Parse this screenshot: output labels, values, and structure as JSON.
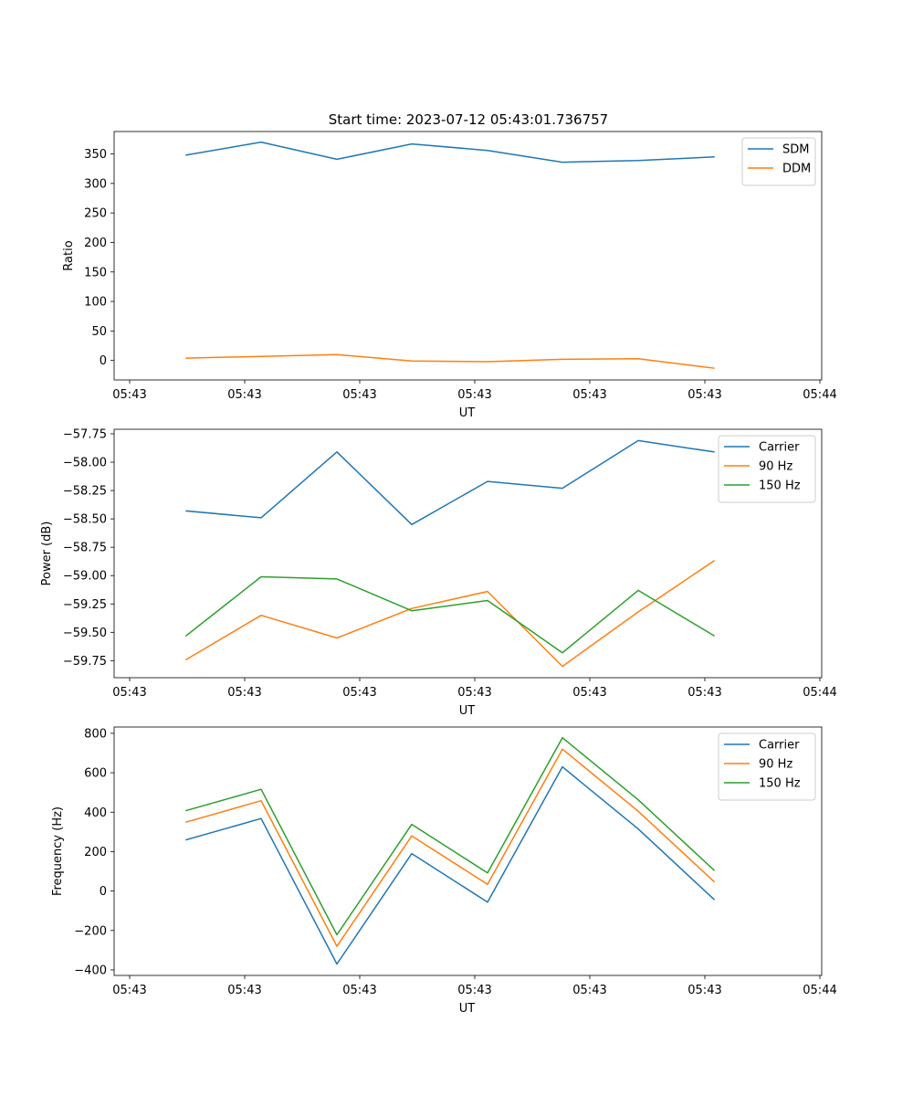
{
  "chart_data": [
    {
      "type": "line",
      "title": "Start time: 2023-07-12 05:43:01.736757",
      "xlabel": "UT",
      "ylabel": "Ratio",
      "x_tick_labels": [
        "05:43",
        "05:43",
        "05:43",
        "05:43",
        "05:43",
        "05:43",
        "05:44"
      ],
      "ylim": [
        -33,
        388
      ],
      "y_ticks": [
        0,
        50,
        100,
        150,
        200,
        250,
        300,
        350
      ],
      "legend": "top-right",
      "series": [
        {
          "name": "SDM",
          "color": "#1f77b4",
          "values": [
            348,
            370,
            341,
            367,
            356,
            336,
            339,
            345
          ]
        },
        {
          "name": "DDM",
          "color": "#ff7f0e",
          "values": [
            4,
            7,
            10,
            -1,
            -2,
            2,
            3,
            -13
          ]
        }
      ]
    },
    {
      "type": "line",
      "title": "",
      "xlabel": "UT",
      "ylabel": "Power (dB)",
      "x_tick_labels": [
        "05:43",
        "05:43",
        "05:43",
        "05:43",
        "05:43",
        "05:43",
        "05:44"
      ],
      "ylim": [
        -59.9,
        -57.71
      ],
      "y_ticks": [
        -59.75,
        -59.5,
        -59.25,
        -59.0,
        -58.75,
        -58.5,
        -58.25,
        -58.0,
        -57.75
      ],
      "legend": "top-right",
      "series": [
        {
          "name": "Carrier",
          "color": "#1f77b4",
          "values": [
            -58.43,
            -58.49,
            -57.91,
            -58.55,
            -58.17,
            -58.23,
            -57.81,
            -57.91
          ]
        },
        {
          "name": "90 Hz",
          "color": "#ff7f0e",
          "values": [
            -59.74,
            -59.35,
            -59.55,
            -59.29,
            -59.14,
            -59.8,
            -59.32,
            -58.87
          ]
        },
        {
          "name": "150 Hz",
          "color": "#2ca02c",
          "values": [
            -59.53,
            -59.01,
            -59.03,
            -59.31,
            -59.22,
            -59.68,
            -59.13,
            -59.53
          ]
        }
      ]
    },
    {
      "type": "line",
      "title": "",
      "xlabel": "UT",
      "ylabel": "Frequency (Hz)",
      "x_tick_labels": [
        "05:43",
        "05:43",
        "05:43",
        "05:43",
        "05:43",
        "05:43",
        "05:44"
      ],
      "ylim": [
        -428,
        832
      ],
      "y_ticks": [
        -400,
        -200,
        0,
        200,
        400,
        600,
        800
      ],
      "legend": "top-right",
      "series": [
        {
          "name": "Carrier",
          "color": "#1f77b4",
          "values": [
            260,
            368,
            -370,
            190,
            -56,
            630,
            315,
            -42
          ]
        },
        {
          "name": "90 Hz",
          "color": "#ff7f0e",
          "values": [
            350,
            458,
            -280,
            280,
            34,
            720,
            405,
            48
          ]
        },
        {
          "name": "150 Hz",
          "color": "#2ca02c",
          "values": [
            408,
            516,
            -222,
            338,
            92,
            778,
            463,
            106
          ]
        }
      ]
    }
  ]
}
